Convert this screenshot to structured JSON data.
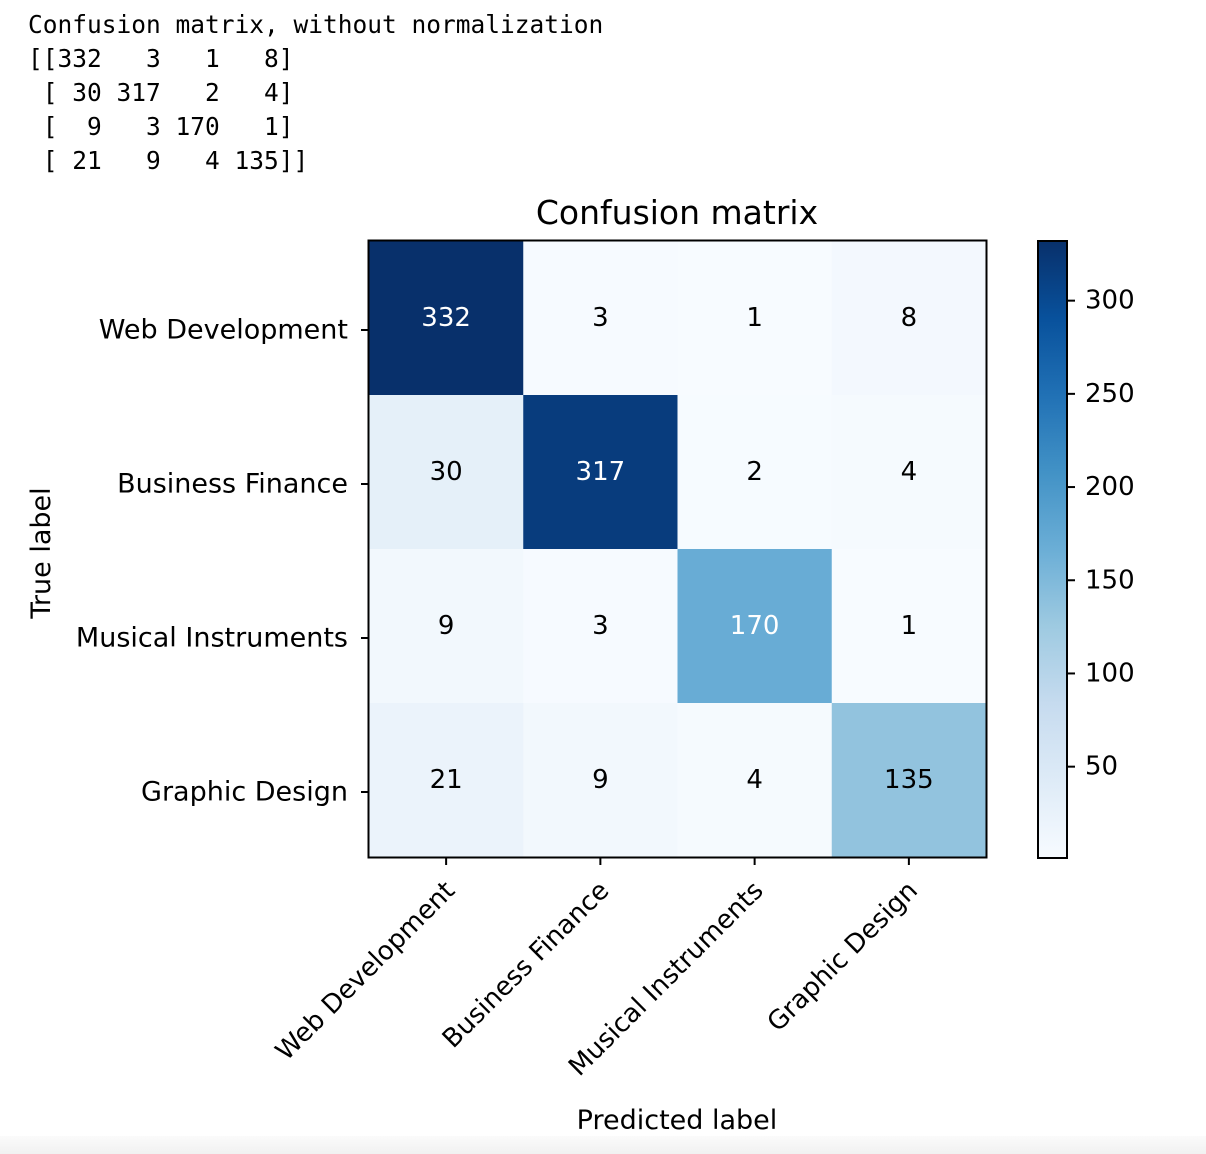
{
  "console": {
    "lines": [
      "Confusion matrix, without normalization",
      "[[332   3   1   8]",
      " [ 30 317   2   4]",
      " [  9   3 170   1]",
      " [ 21   9   4 135]]"
    ]
  },
  "chart_data": {
    "type": "heatmap",
    "title": "Confusion matrix",
    "xlabel": "Predicted label",
    "ylabel": "True label",
    "x_categories": [
      "Web Development",
      "Business Finance",
      "Musical Instruments",
      "Graphic Design"
    ],
    "y_categories": [
      "Web Development",
      "Business Finance",
      "Musical Instruments",
      "Graphic Design"
    ],
    "values": [
      [
        332,
        3,
        1,
        8
      ],
      [
        30,
        317,
        2,
        4
      ],
      [
        9,
        3,
        170,
        1
      ],
      [
        21,
        9,
        4,
        135
      ]
    ],
    "colormap": "Blues",
    "vmin": 1,
    "vmax": 332,
    "colorbar_ticks": [
      50,
      100,
      150,
      200,
      250,
      300
    ],
    "grid": false,
    "colors": {
      "low": "#f7fbff",
      "high": "#08306b",
      "text_dark": "#000000",
      "text_light": "#ffffff"
    }
  }
}
